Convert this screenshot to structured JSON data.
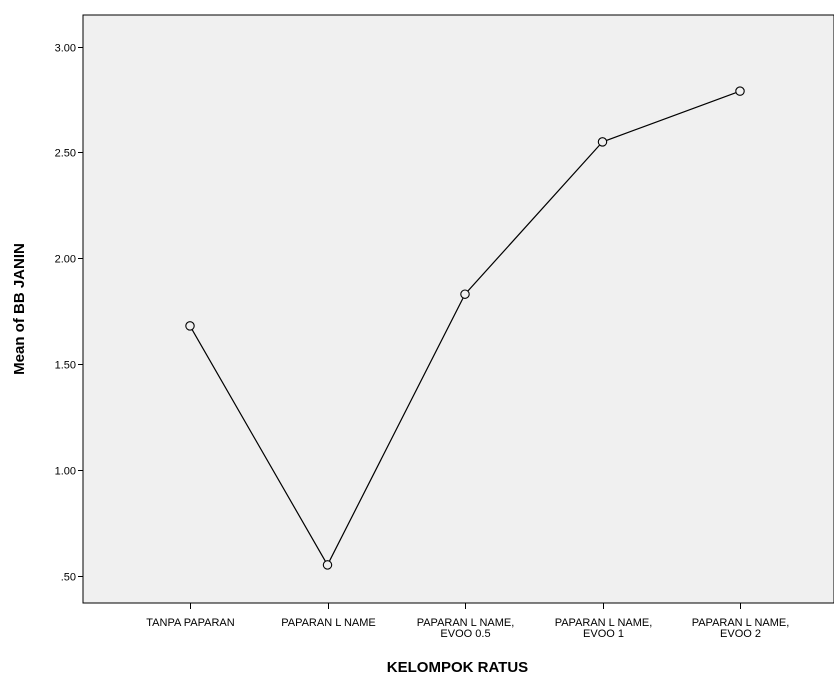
{
  "chart_data": {
    "type": "line",
    "categories": [
      [
        "TANPA PAPARAN"
      ],
      [
        "PAPARAN L NAME"
      ],
      [
        "PAPARAN L NAME,",
        "EVOO 0.5"
      ],
      [
        "PAPARAN L NAME,",
        "EVOO 1"
      ],
      [
        "PAPARAN L NAME,",
        "EVOO 2"
      ]
    ],
    "values": [
      1.68,
      0.55,
      1.83,
      2.55,
      2.79
    ],
    "xlabel": "KELOMPOK RATUS",
    "ylabel": "Mean of BB JANIN",
    "yticks": [
      0.5,
      1.0,
      1.5,
      2.0,
      2.5,
      3.0
    ],
    "ytick_labels": [
      ".50",
      "1.00",
      "1.50",
      "2.00",
      "2.50",
      "3.00"
    ],
    "ylim": [
      0.37,
      3.15
    ],
    "grid": false,
    "markers": "open-circle",
    "colors": {
      "plot_background": "#f0f0f0",
      "line": "#000000",
      "axis": "#000000",
      "marker_fill": "#f0f0f0"
    }
  }
}
